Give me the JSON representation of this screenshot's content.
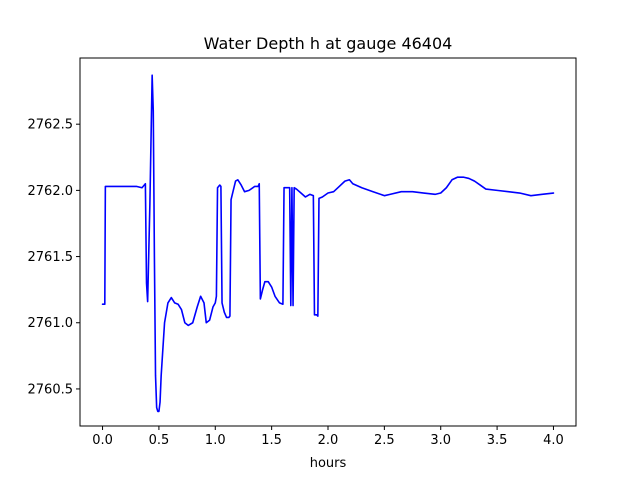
{
  "chart_data": {
    "type": "line",
    "title": "Water Depth h at gauge 46404",
    "xlabel": "hours",
    "ylabel": "",
    "xlim": [
      -0.2,
      4.2
    ],
    "ylim": [
      2760.22,
      2763.0
    ],
    "xticks": [
      {
        "value": 0.0,
        "label": "0.0"
      },
      {
        "value": 0.5,
        "label": "0.5"
      },
      {
        "value": 1.0,
        "label": "1.0"
      },
      {
        "value": 1.5,
        "label": "1.5"
      },
      {
        "value": 2.0,
        "label": "2.0"
      },
      {
        "value": 2.5,
        "label": "2.5"
      },
      {
        "value": 3.0,
        "label": "3.0"
      },
      {
        "value": 3.5,
        "label": "3.5"
      },
      {
        "value": 4.0,
        "label": "4.0"
      }
    ],
    "yticks": [
      {
        "value": 2760.5,
        "label": "2760.5"
      },
      {
        "value": 2761.0,
        "label": "2761.0"
      },
      {
        "value": 2761.5,
        "label": "2761.5"
      },
      {
        "value": 2762.0,
        "label": "2762.0"
      },
      {
        "value": 2762.5,
        "label": "2762.5"
      }
    ],
    "grid": false,
    "series": [
      {
        "color": "#0000ff",
        "x": [
          0.0,
          0.02,
          0.025,
          0.05,
          0.1,
          0.2,
          0.3,
          0.35,
          0.38,
          0.39,
          0.4,
          0.42,
          0.44,
          0.45,
          0.46,
          0.47,
          0.48,
          0.49,
          0.5,
          0.51,
          0.52,
          0.55,
          0.58,
          0.61,
          0.64,
          0.67,
          0.7,
          0.73,
          0.76,
          0.8,
          0.84,
          0.87,
          0.9,
          0.92,
          0.95,
          0.98,
          1.0,
          1.01,
          1.02,
          1.04,
          1.05,
          1.06,
          1.08,
          1.1,
          1.12,
          1.13,
          1.14,
          1.16,
          1.18,
          1.2,
          1.23,
          1.26,
          1.3,
          1.35,
          1.38,
          1.39,
          1.4,
          1.42,
          1.44,
          1.47,
          1.5,
          1.53,
          1.57,
          1.6,
          1.61,
          1.64,
          1.66,
          1.67,
          1.68,
          1.69,
          1.7,
          1.72,
          1.76,
          1.8,
          1.84,
          1.87,
          1.88,
          1.9,
          1.91,
          1.92,
          1.95,
          2.0,
          2.05,
          2.1,
          2.15,
          2.19,
          2.22,
          2.3,
          2.4,
          2.5,
          2.55,
          2.65,
          2.75,
          2.85,
          2.95,
          3.0,
          3.05,
          3.1,
          3.15,
          3.2,
          3.25,
          3.3,
          3.35,
          3.4,
          3.5,
          3.6,
          3.7,
          3.8,
          3.9,
          4.0
        ],
        "y": [
          2761.14,
          2761.14,
          2762.03,
          2762.03,
          2762.03,
          2762.03,
          2762.03,
          2762.02,
          2762.05,
          2761.3,
          2761.16,
          2761.9,
          2762.87,
          2762.6,
          2761.5,
          2760.6,
          2760.36,
          2760.33,
          2760.33,
          2760.4,
          2760.6,
          2761.0,
          2761.15,
          2761.19,
          2761.15,
          2761.14,
          2761.1,
          2761.0,
          2760.98,
          2761.0,
          2761.12,
          2761.2,
          2761.15,
          2761.0,
          2761.02,
          2761.12,
          2761.15,
          2761.2,
          2762.02,
          2762.04,
          2762.03,
          2761.15,
          2761.08,
          2761.04,
          2761.04,
          2761.05,
          2761.93,
          2762.0,
          2762.07,
          2762.08,
          2762.04,
          2761.99,
          2762.0,
          2762.03,
          2762.03,
          2762.05,
          2761.18,
          2761.25,
          2761.31,
          2761.31,
          2761.27,
          2761.2,
          2761.15,
          2761.14,
          2762.02,
          2762.02,
          2762.02,
          2761.13,
          2762.02,
          2761.13,
          2762.02,
          2762.01,
          2761.98,
          2761.95,
          2761.97,
          2761.96,
          2761.06,
          2761.06,
          2761.05,
          2761.94,
          2761.95,
          2761.98,
          2761.99,
          2762.03,
          2762.07,
          2762.08,
          2762.05,
          2762.02,
          2761.99,
          2761.96,
          2761.97,
          2761.99,
          2761.99,
          2761.98,
          2761.97,
          2761.98,
          2762.02,
          2762.08,
          2762.1,
          2762.1,
          2762.09,
          2762.07,
          2762.04,
          2762.01,
          2762.0,
          2761.99,
          2761.98,
          2761.96,
          2761.97,
          2761.98
        ]
      }
    ]
  }
}
